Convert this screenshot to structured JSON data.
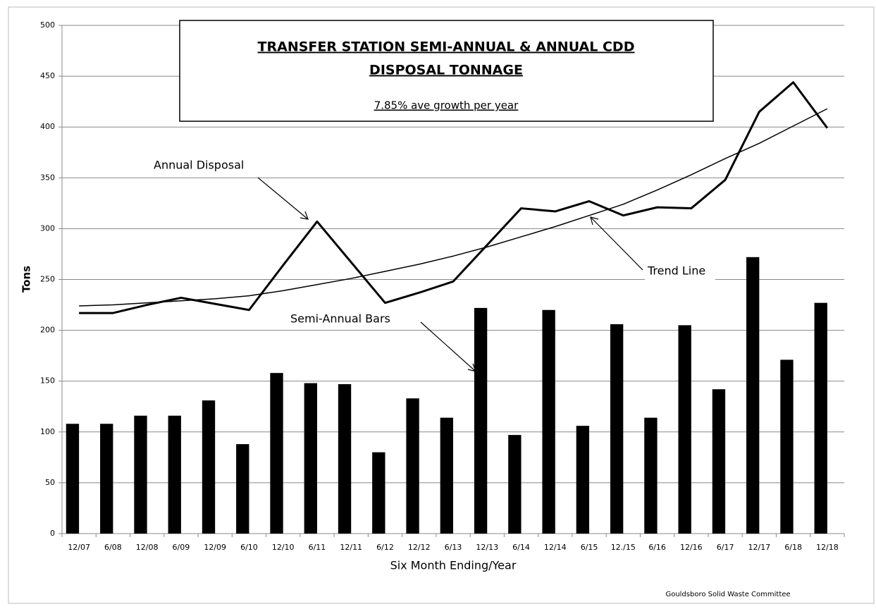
{
  "chart_data": {
    "type": "bar_line",
    "title": [
      "TRANSFER STATION SEMI-ANNUAL & ANNUAL CDD",
      "DISPOSAL TONNAGE"
    ],
    "subtitle": "7.85%  ave growth per year",
    "y_label": "Tons",
    "x_label": "Six Month Ending/Year",
    "footer": "Gouldsboro Solid Waste Committee",
    "annotations": [
      "Annual Disposal",
      "Semi-Annual Bars",
      "Trend Line"
    ],
    "categories": [
      "12/07",
      "6/08",
      "12/08",
      "6/09",
      "12/09",
      "6/10",
      "12/10",
      "6/11",
      "12/11",
      "6/12",
      "12/12",
      "6/13",
      "12/13",
      "6/14",
      "12/14",
      "6/15",
      "12./15",
      "6/16",
      "12/16",
      "6/17",
      "12/17",
      "6/18",
      "12/18"
    ],
    "series": [
      {
        "name": "Semi-Annual",
        "kind": "bar",
        "color": "#000000",
        "values": [
          108,
          108,
          116,
          116,
          131,
          88,
          158,
          148,
          147,
          80,
          133,
          114,
          222,
          97,
          220,
          106,
          206,
          114,
          205,
          142,
          272,
          171,
          227
        ]
      },
      {
        "name": "Annual",
        "kind": "line",
        "color": "#000000",
        "width": 3,
        "values": [
          217,
          217,
          225,
          232,
          226,
          220,
          264,
          307,
          267,
          227,
          237,
          248,
          284,
          320,
          317,
          327,
          313,
          321,
          320,
          348,
          415,
          444,
          399
        ]
      },
      {
        "name": "Trend",
        "kind": "line",
        "color": "#000000",
        "width": 1.5,
        "values": [
          224,
          225,
          227,
          229,
          231,
          234,
          239,
          245,
          251,
          258,
          265,
          273,
          282,
          292,
          302,
          313,
          324,
          338,
          353,
          369,
          384,
          401,
          418
        ]
      }
    ],
    "ylim": [
      0,
      500
    ],
    "yticks": [
      0,
      50,
      100,
      150,
      200,
      250,
      300,
      350,
      400,
      450,
      500
    ],
    "grid": true
  }
}
